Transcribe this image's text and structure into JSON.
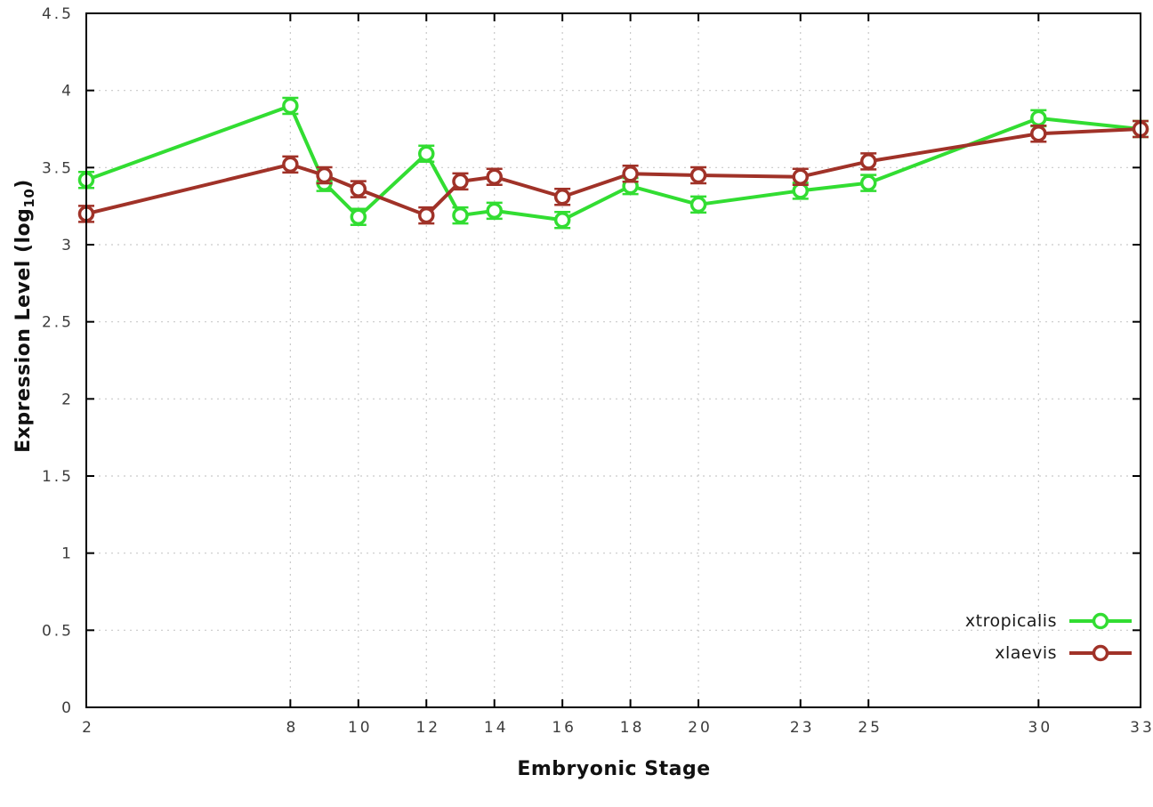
{
  "chart_data": {
    "type": "line",
    "title": "",
    "xlabel": "Embryonic Stage",
    "ylabel": "Expression Level (log10)",
    "ylabel_parts": {
      "main": "Expression Level (log",
      "sub": "10",
      "close": ")"
    },
    "x": [
      2,
      8,
      9,
      10,
      12,
      13,
      14,
      16,
      18,
      20,
      23,
      25,
      30,
      33
    ],
    "xtick_labels": [
      2,
      8,
      10,
      12,
      14,
      16,
      18,
      20,
      23,
      25,
      30,
      33
    ],
    "yticks": [
      0,
      0.5,
      1,
      1.5,
      2,
      2.5,
      3,
      3.5,
      4,
      4.5
    ],
    "xlim": [
      2,
      33
    ],
    "ylim": [
      0,
      4.5
    ],
    "grid": true,
    "legend_position": "bottom-right",
    "marker": "open-circle-with-error-caps",
    "series": [
      {
        "name": "xtropicalis",
        "color": "#32dd32",
        "values": [
          3.42,
          3.9,
          3.4,
          3.18,
          3.59,
          3.19,
          3.22,
          3.16,
          3.38,
          3.26,
          3.35,
          3.4,
          3.82,
          3.75
        ]
      },
      {
        "name": "xlaevis",
        "color": "#a03228",
        "values": [
          3.2,
          3.52,
          3.45,
          3.36,
          3.19,
          3.41,
          3.44,
          3.31,
          3.46,
          3.45,
          3.44,
          3.54,
          3.72,
          3.75
        ]
      }
    ]
  },
  "style": {
    "grid_color": "#c9c9c9",
    "border_color": "#000000",
    "tick_label_color": "#3c3c3c",
    "background": "#ffffff"
  }
}
